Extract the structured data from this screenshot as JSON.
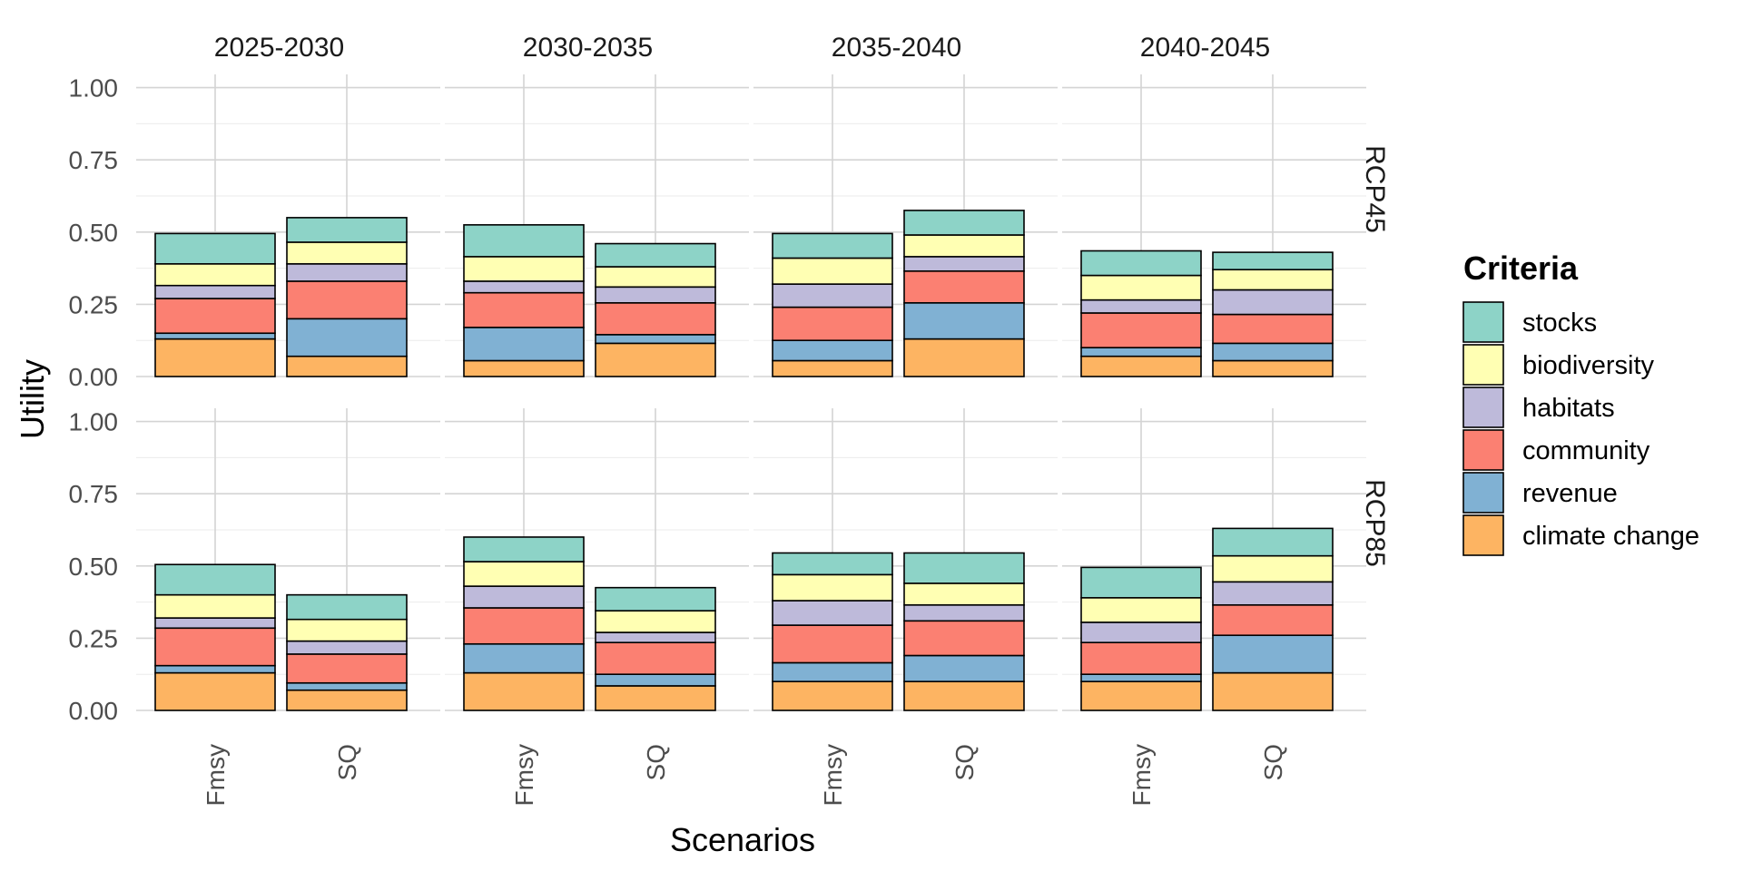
{
  "chart_data": {
    "type": "bar",
    "stacked": true,
    "facet_columns": [
      "2025-2030",
      "2030-2035",
      "2035-2040",
      "2040-2045"
    ],
    "facet_rows": [
      "RCP45",
      "RCP85"
    ],
    "categories": [
      "Fmsy",
      "SQ"
    ],
    "xlabel": "Scenarios",
    "ylabel": "Utility",
    "ylim": [
      0,
      1
    ],
    "yticks": [
      "0.00",
      "0.25",
      "0.50",
      "0.75",
      "1.00"
    ],
    "grid": true,
    "legend": {
      "title": "Criteria",
      "placement": "right",
      "entries": [
        "stocks",
        "biodiversity",
        "habitats",
        "community",
        "revenue",
        "climate change"
      ]
    },
    "colors": {
      "climate change": "#fdb462",
      "revenue": "#80b1d3",
      "community": "#fb8072",
      "habitats": "#bebada",
      "biodiversity": "#ffffb3",
      "stocks": "#8dd3c7"
    },
    "stack_order": [
      "climate change",
      "revenue",
      "community",
      "habitats",
      "biodiversity",
      "stocks"
    ],
    "panels": [
      {
        "row": "RCP45",
        "col": "2025-2030",
        "bars": [
          {
            "category": "Fmsy",
            "values": {
              "climate change": 0.13,
              "revenue": 0.02,
              "community": 0.12,
              "habitats": 0.045,
              "biodiversity": 0.075,
              "stocks": 0.105
            }
          },
          {
            "category": "SQ",
            "values": {
              "climate change": 0.07,
              "revenue": 0.13,
              "community": 0.13,
              "habitats": 0.06,
              "biodiversity": 0.075,
              "stocks": 0.085
            }
          }
        ]
      },
      {
        "row": "RCP45",
        "col": "2030-2035",
        "bars": [
          {
            "category": "Fmsy",
            "values": {
              "climate change": 0.055,
              "revenue": 0.115,
              "community": 0.12,
              "habitats": 0.04,
              "biodiversity": 0.085,
              "stocks": 0.11
            }
          },
          {
            "category": "SQ",
            "values": {
              "climate change": 0.115,
              "revenue": 0.03,
              "community": 0.11,
              "habitats": 0.055,
              "biodiversity": 0.07,
              "stocks": 0.08
            }
          }
        ]
      },
      {
        "row": "RCP45",
        "col": "2035-2040",
        "bars": [
          {
            "category": "Fmsy",
            "values": {
              "climate change": 0.055,
              "revenue": 0.07,
              "community": 0.115,
              "habitats": 0.08,
              "biodiversity": 0.09,
              "stocks": 0.085
            }
          },
          {
            "category": "SQ",
            "values": {
              "climate change": 0.13,
              "revenue": 0.125,
              "community": 0.11,
              "habitats": 0.05,
              "biodiversity": 0.075,
              "stocks": 0.085
            }
          }
        ]
      },
      {
        "row": "RCP45",
        "col": "2040-2045",
        "bars": [
          {
            "category": "Fmsy",
            "values": {
              "climate change": 0.07,
              "revenue": 0.03,
              "community": 0.12,
              "habitats": 0.045,
              "biodiversity": 0.085,
              "stocks": 0.085
            }
          },
          {
            "category": "SQ",
            "values": {
              "climate change": 0.055,
              "revenue": 0.06,
              "community": 0.1,
              "habitats": 0.085,
              "biodiversity": 0.07,
              "stocks": 0.06
            }
          }
        ]
      },
      {
        "row": "RCP85",
        "col": "2025-2030",
        "bars": [
          {
            "category": "Fmsy",
            "values": {
              "climate change": 0.13,
              "revenue": 0.025,
              "community": 0.13,
              "habitats": 0.035,
              "biodiversity": 0.08,
              "stocks": 0.105
            }
          },
          {
            "category": "SQ",
            "values": {
              "climate change": 0.07,
              "revenue": 0.025,
              "community": 0.1,
              "habitats": 0.045,
              "biodiversity": 0.075,
              "stocks": 0.085
            }
          }
        ]
      },
      {
        "row": "RCP85",
        "col": "2030-2035",
        "bars": [
          {
            "category": "Fmsy",
            "values": {
              "climate change": 0.13,
              "revenue": 0.1,
              "community": 0.125,
              "habitats": 0.075,
              "biodiversity": 0.085,
              "stocks": 0.085
            }
          },
          {
            "category": "SQ",
            "values": {
              "climate change": 0.085,
              "revenue": 0.04,
              "community": 0.11,
              "habitats": 0.035,
              "biodiversity": 0.075,
              "stocks": 0.08
            }
          }
        ]
      },
      {
        "row": "RCP85",
        "col": "2035-2040",
        "bars": [
          {
            "category": "Fmsy",
            "values": {
              "climate change": 0.1,
              "revenue": 0.065,
              "community": 0.13,
              "habitats": 0.085,
              "biodiversity": 0.09,
              "stocks": 0.075
            }
          },
          {
            "category": "SQ",
            "values": {
              "climate change": 0.1,
              "revenue": 0.09,
              "community": 0.12,
              "habitats": 0.055,
              "biodiversity": 0.075,
              "stocks": 0.105
            }
          }
        ]
      },
      {
        "row": "RCP85",
        "col": "2040-2045",
        "bars": [
          {
            "category": "Fmsy",
            "values": {
              "climate change": 0.1,
              "revenue": 0.025,
              "community": 0.11,
              "habitats": 0.07,
              "biodiversity": 0.085,
              "stocks": 0.105
            }
          },
          {
            "category": "SQ",
            "values": {
              "climate change": 0.13,
              "revenue": 0.13,
              "community": 0.105,
              "habitats": 0.08,
              "biodiversity": 0.09,
              "stocks": 0.095
            }
          }
        ]
      }
    ]
  }
}
